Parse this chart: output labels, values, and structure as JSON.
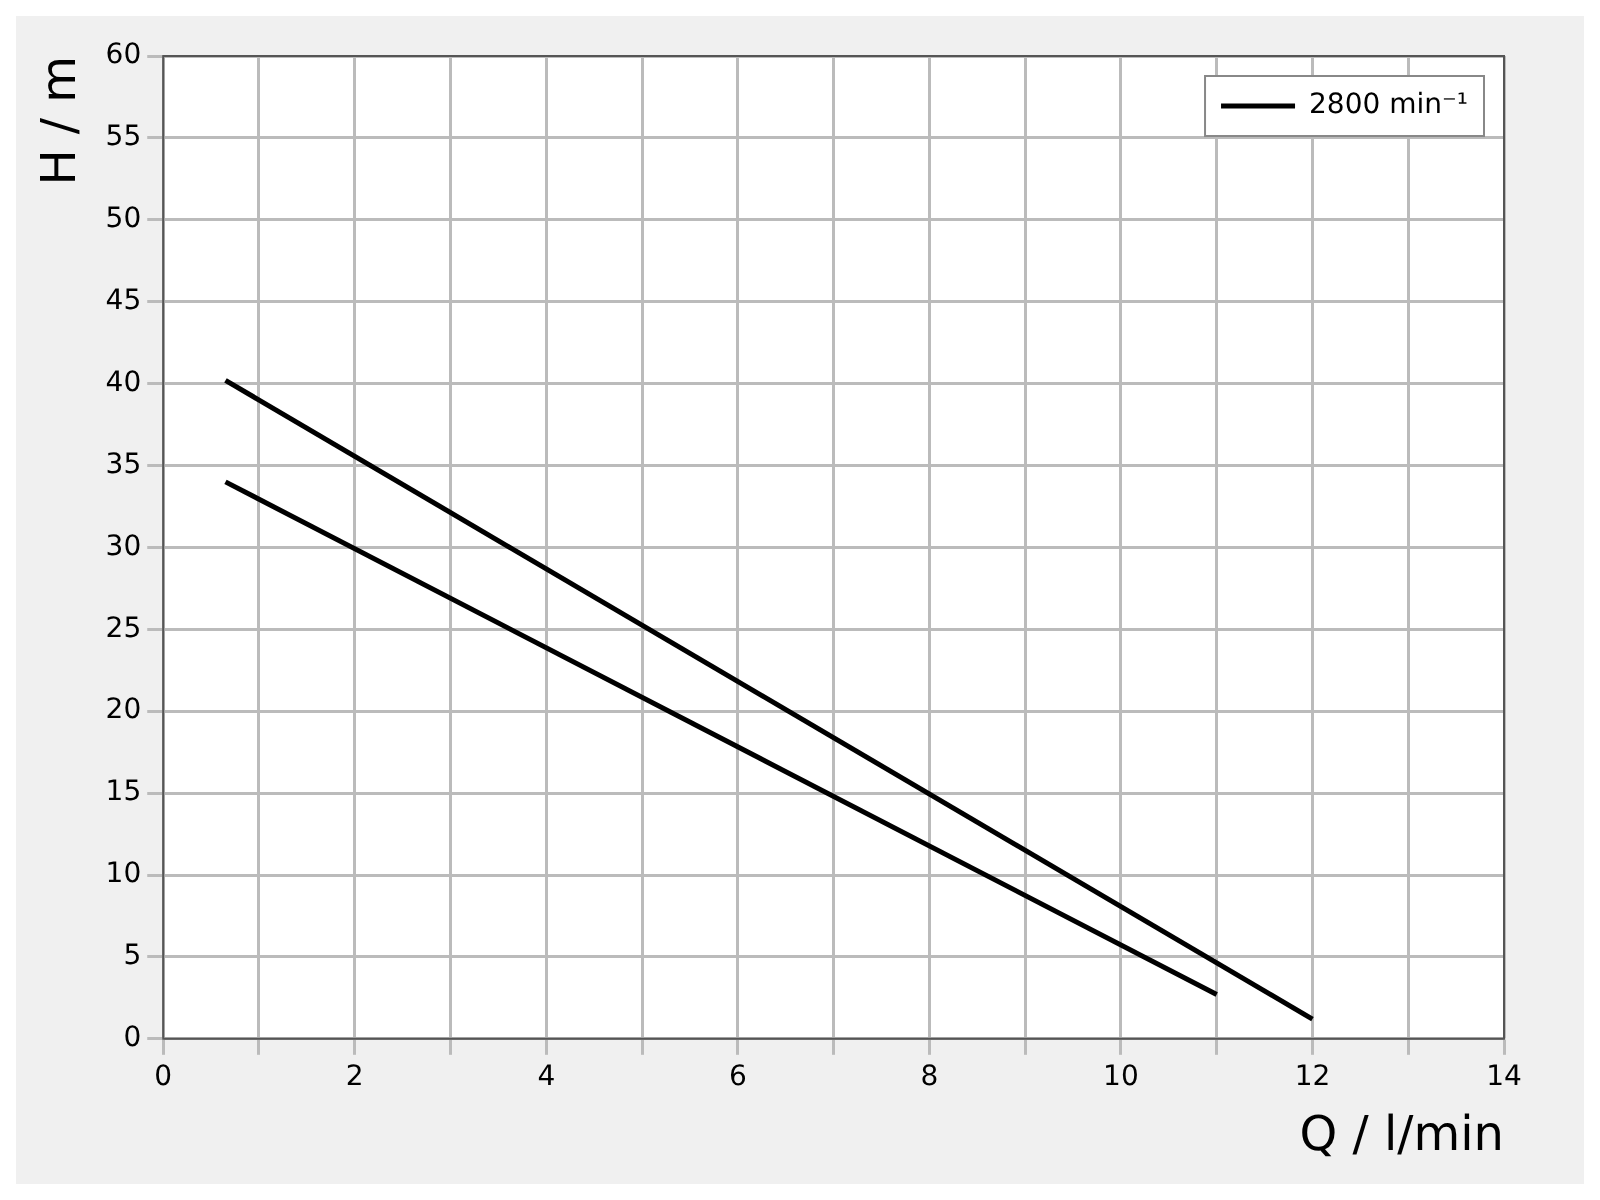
{
  "chart_data": {
    "type": "line",
    "xlabel": "Q / l/min",
    "ylabel": "H / m",
    "xlim": [
      0,
      14
    ],
    "xticks": [
      0,
      {
        "value": 1,
        "label": null
      },
      2,
      {
        "value": 3,
        "label": null
      },
      4,
      {
        "value": 5,
        "label": null
      },
      6,
      {
        "value": 7,
        "label": null
      },
      8,
      {
        "value": 9,
        "label": null
      },
      10,
      {
        "value": 11,
        "label": null
      },
      12,
      {
        "value": 13,
        "label": null
      },
      14
    ],
    "ylim": [
      0,
      60
    ],
    "yticks": [
      0,
      5,
      10,
      15,
      20,
      25,
      30,
      35,
      40,
      45,
      50,
      55,
      60
    ],
    "series": [
      {
        "name": "2800 min⁻¹",
        "color": "#000000",
        "x": [
          0.65,
          12
        ],
        "values": [
          40.2,
          1.2
        ]
      },
      {
        "color": "#000000",
        "x": [
          0.65,
          11
        ],
        "values": [
          34,
          2.7
        ]
      }
    ],
    "grid": true,
    "legend": "top right",
    "marker": "none",
    "line_style": "solid"
  }
}
